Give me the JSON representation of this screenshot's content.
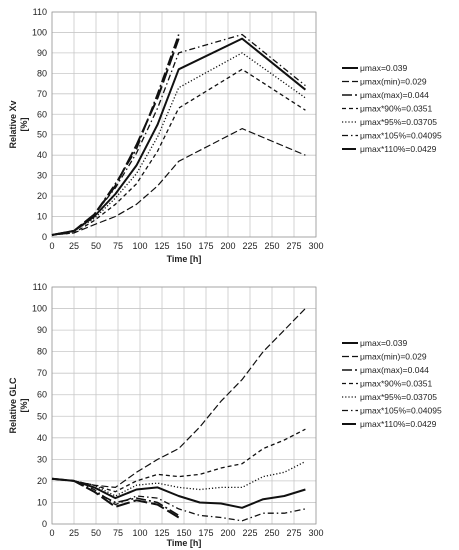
{
  "chart_data": [
    {
      "type": "line",
      "title": "",
      "xlabel": "Time [h]",
      "ylabel": "Relative Xv [%]",
      "xlim": [
        0,
        300
      ],
      "ylim": [
        0,
        110
      ],
      "xticks": [
        "0",
        "25",
        "50",
        "75",
        "100",
        "125",
        "150",
        "175",
        "200",
        "225",
        "250",
        "275",
        "300"
      ],
      "yticks": [
        "0",
        "10",
        "20",
        "30",
        "40",
        "50",
        "60",
        "70",
        "80",
        "90",
        "100",
        "110"
      ],
      "grid": true,
      "legend": "right",
      "series": [
        {
          "name": "μmax=0.039",
          "dash": "solid",
          "width": 2.0,
          "x": [
            0,
            25,
            48,
            72,
            96,
            120,
            144,
            216,
            288
          ],
          "y": [
            1,
            3,
            10,
            21,
            35,
            55,
            82,
            97,
            72
          ]
        },
        {
          "name": "μmax(min)=0.029",
          "dash": "longdash",
          "width": 1.2,
          "x": [
            0,
            25,
            48,
            72,
            96,
            120,
            144,
            216,
            288
          ],
          "y": [
            1,
            2,
            6,
            10,
            16,
            25,
            37,
            53,
            40
          ]
        },
        {
          "name": "μmax(max)=0.044",
          "dash": "longdashdot",
          "width": 1.6,
          "x": [
            0,
            25,
            48,
            72,
            96,
            120,
            144
          ],
          "y": [
            1,
            3,
            11,
            26,
            43,
            70,
            99
          ]
        },
        {
          "name": "μmax*90%=0.0351",
          "dash": "dash",
          "width": 1.3,
          "x": [
            0,
            25,
            48,
            72,
            96,
            120,
            144,
            216,
            288
          ],
          "y": [
            1,
            2,
            8,
            16,
            26,
            42,
            63,
            82,
            62
          ]
        },
        {
          "name": "μmax*95%=0.03705",
          "dash": "dot",
          "width": 1.3,
          "x": [
            0,
            25,
            48,
            72,
            96,
            120,
            144,
            216,
            288
          ],
          "y": [
            1,
            3,
            9,
            19,
            31,
            49,
            73,
            90,
            68
          ]
        },
        {
          "name": "μmax*105%=0.04095",
          "dash": "dashdot",
          "width": 1.3,
          "x": [
            0,
            25,
            48,
            72,
            96,
            120,
            144,
            216,
            288
          ],
          "y": [
            1,
            3,
            11,
            24,
            41,
            63,
            90,
            99,
            74
          ]
        },
        {
          "name": "μmax*110%=0.0429",
          "dash": "heavydash",
          "width": 2.0,
          "x": [
            0,
            25,
            48,
            72,
            96,
            120,
            144
          ],
          "y": [
            1,
            3,
            11,
            25,
            45,
            68,
            97
          ]
        }
      ]
    },
    {
      "type": "line",
      "title": "",
      "xlabel": "Time [h]",
      "ylabel": "Relative GLC [%]",
      "xlim": [
        0,
        300
      ],
      "ylim": [
        0,
        110
      ],
      "xticks": [
        "0",
        "25",
        "50",
        "75",
        "100",
        "125",
        "150",
        "175",
        "200",
        "225",
        "250",
        "275",
        "300"
      ],
      "yticks": [
        "0",
        "10",
        "20",
        "30",
        "40",
        "50",
        "60",
        "70",
        "80",
        "90",
        "100",
        "110"
      ],
      "grid": true,
      "legend": "right",
      "series": [
        {
          "name": "μmax=0.039",
          "dash": "solid",
          "width": 2.0,
          "x": [
            0,
            25,
            48,
            72,
            96,
            120,
            144,
            168,
            192,
            216,
            240,
            264,
            288
          ],
          "y": [
            21,
            20,
            17,
            12,
            16,
            17,
            13,
            10,
            9.5,
            7.5,
            11.5,
            13,
            16
          ]
        },
        {
          "name": "μmax(min)=0.029",
          "dash": "longdash",
          "width": 1.2,
          "x": [
            0,
            25,
            48,
            72,
            96,
            120,
            144,
            168,
            192,
            216,
            240,
            264,
            288
          ],
          "y": [
            21,
            20,
            18,
            17,
            24,
            30,
            35,
            45,
            57,
            67,
            80,
            90,
            100
          ]
        },
        {
          "name": "μmax(max)=0.044",
          "dash": "longdashdot",
          "width": 1.6,
          "x": [
            0,
            25,
            48,
            72,
            96,
            120,
            144
          ],
          "y": [
            21,
            20,
            15,
            10,
            12,
            10,
            4
          ]
        },
        {
          "name": "μmax*90%=0.0351",
          "dash": "dash",
          "width": 1.3,
          "x": [
            0,
            25,
            48,
            72,
            96,
            120,
            144,
            168,
            192,
            216,
            240,
            264,
            288
          ],
          "y": [
            21,
            20,
            18,
            15,
            20,
            23,
            22,
            23,
            26,
            28,
            35,
            39,
            44
          ]
        },
        {
          "name": "μmax*95%=0.03705",
          "dash": "dot",
          "width": 1.3,
          "x": [
            0,
            25,
            48,
            72,
            96,
            120,
            144,
            168,
            192,
            216,
            240,
            264,
            288
          ],
          "y": [
            21,
            20,
            18,
            13,
            18,
            19,
            17,
            16,
            17,
            17,
            22,
            24,
            29
          ]
        },
        {
          "name": "μmax*105%=0.04095",
          "dash": "dashdot",
          "width": 1.3,
          "x": [
            0,
            25,
            48,
            72,
            96,
            120,
            144,
            168,
            192,
            216,
            240,
            264,
            288
          ],
          "y": [
            21,
            20,
            16,
            9,
            13,
            12,
            7,
            4,
            3,
            1.5,
            5,
            5,
            7
          ]
        },
        {
          "name": "μmax*110%=0.0429",
          "dash": "heavydash",
          "width": 2.0,
          "x": [
            0,
            25,
            48,
            72,
            96,
            120,
            144
          ],
          "y": [
            21,
            20,
            15,
            8,
            11,
            9,
            3
          ]
        }
      ]
    }
  ]
}
